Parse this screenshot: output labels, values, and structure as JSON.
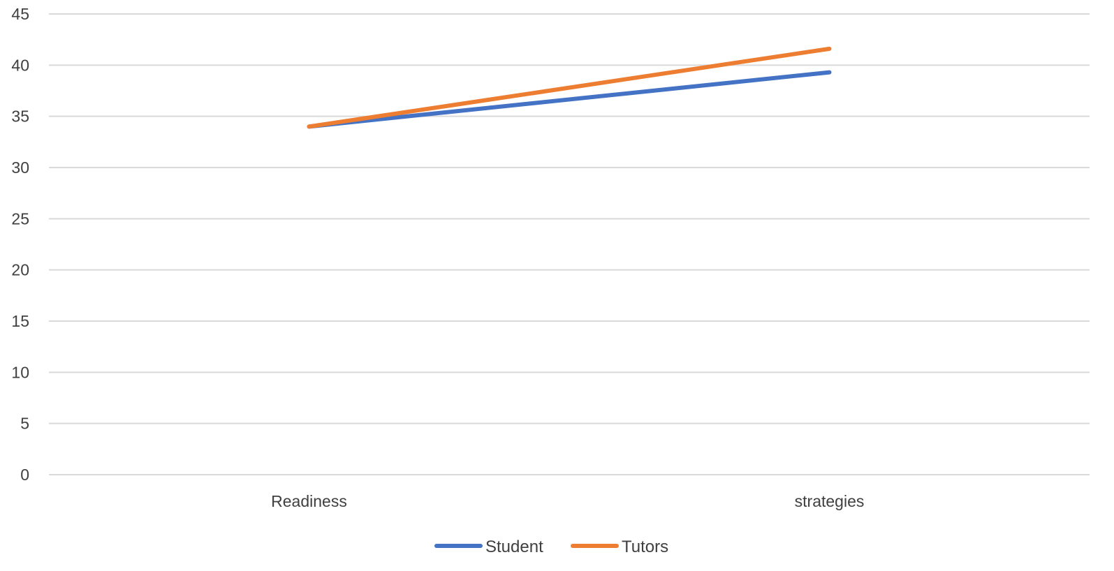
{
  "chart_data": {
    "type": "line",
    "categories": [
      "Readiness",
      "strategies"
    ],
    "series": [
      {
        "name": "Student",
        "values": [
          34,
          39.3
        ],
        "color": "#4472C4"
      },
      {
        "name": "Tutors",
        "values": [
          34,
          41.6
        ],
        "color": "#ED7D31"
      }
    ],
    "ylim": [
      0,
      45
    ],
    "yticks": [
      0,
      5,
      10,
      15,
      20,
      25,
      30,
      35,
      40,
      45
    ],
    "grid": true,
    "legend": "bottom"
  }
}
